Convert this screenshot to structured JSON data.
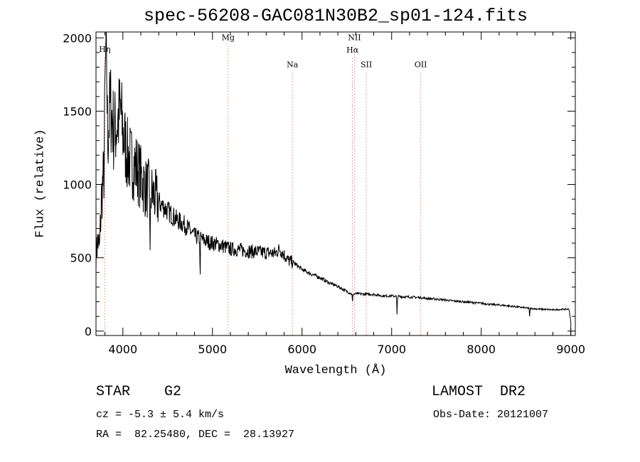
{
  "chart_data": {
    "type": "line",
    "title": "spec-56208-GAC081N30B2_sp01-124.fits",
    "xlabel": "Wavelength (Å)",
    "ylabel": "Flux (relative)",
    "xlim": [
      3700,
      9050
    ],
    "ylim": [
      -30,
      2040
    ],
    "x_ticks": [
      4000,
      5000,
      6000,
      7000,
      8000,
      9000
    ],
    "y_ticks": [
      0,
      500,
      1000,
      1500,
      2000
    ],
    "spectrum_anchor_points": [
      [
        3700,
        520
      ],
      [
        3720,
        620
      ],
      [
        3740,
        560
      ],
      [
        3760,
        900
      ],
      [
        3790,
        1100
      ],
      [
        3800,
        1600
      ],
      [
        3815,
        2050
      ],
      [
        3830,
        1300
      ],
      [
        3860,
        1550
      ],
      [
        3900,
        1350
      ],
      [
        3950,
        1450
      ],
      [
        3975,
        1500
      ],
      [
        4000,
        1350
      ],
      [
        4050,
        1200
      ],
      [
        4100,
        1150
      ],
      [
        4150,
        1120
      ],
      [
        4200,
        1050
      ],
      [
        4250,
        980
      ],
      [
        4300,
        960
      ],
      [
        4400,
        880
      ],
      [
        4500,
        820
      ],
      [
        4600,
        760
      ],
      [
        4700,
        720
      ],
      [
        4800,
        650
      ],
      [
        4900,
        620
      ],
      [
        5000,
        600
      ],
      [
        5100,
        585
      ],
      [
        5200,
        560
      ],
      [
        5300,
        555
      ],
      [
        5400,
        545
      ],
      [
        5500,
        540
      ],
      [
        5600,
        535
      ],
      [
        5700,
        530
      ],
      [
        5750,
        560
      ],
      [
        5800,
        520
      ],
      [
        5850,
        480
      ],
      [
        5900,
        470
      ],
      [
        6000,
        420
      ],
      [
        6100,
        390
      ],
      [
        6200,
        365
      ],
      [
        6300,
        330
      ],
      [
        6400,
        305
      ],
      [
        6500,
        270
      ],
      [
        6563,
        250
      ],
      [
        6600,
        255
      ],
      [
        6700,
        252
      ],
      [
        6800,
        250
      ],
      [
        6900,
        240
      ],
      [
        7000,
        240
      ],
      [
        7100,
        235
      ],
      [
        7200,
        232
      ],
      [
        7300,
        230
      ],
      [
        7400,
        222
      ],
      [
        7500,
        218
      ],
      [
        7600,
        212
      ],
      [
        7700,
        205
      ],
      [
        7800,
        200
      ],
      [
        7900,
        195
      ],
      [
        8000,
        190
      ],
      [
        8100,
        182
      ],
      [
        8200,
        178
      ],
      [
        8300,
        172
      ],
      [
        8400,
        165
      ],
      [
        8500,
        158
      ],
      [
        8600,
        152
      ],
      [
        8700,
        148
      ],
      [
        8800,
        145
      ],
      [
        8900,
        148
      ],
      [
        8980,
        150
      ],
      [
        9000,
        60
      ]
    ],
    "absorption_dips": [
      {
        "x": 4305,
        "depth": 600
      },
      {
        "x": 4862,
        "depth": 300
      },
      {
        "x": 6563,
        "depth": 60
      },
      {
        "x": 7060,
        "depth": 130
      },
      {
        "x": 8540,
        "depth": 60
      }
    ],
    "line_markers": [
      {
        "label": "Hη",
        "x": 3798,
        "label_y": 1905
      },
      {
        "label": "Mg",
        "x": 5175,
        "label_y": 1985
      },
      {
        "label": "Na",
        "x": 5893,
        "label_y": 1800
      },
      {
        "label": "NII",
        "x": 6585,
        "label_y": 1985
      },
      {
        "label": "Hα",
        "x": 6563,
        "label_y": 1900
      },
      {
        "label": "SII",
        "x": 6717,
        "label_y": 1800
      },
      {
        "label": "OII",
        "x": 7325,
        "label_y": 1800
      }
    ],
    "marker_color": "#ff3030"
  },
  "info": {
    "object": "STAR    G2",
    "survey": "LAMOST  DR2",
    "velocity": "cz = -5.3 ± 5.4 km/s",
    "obs_date": "Obs-Date: 20121007",
    "coords": "RA =  82.25480, DEC =  28.13927"
  }
}
